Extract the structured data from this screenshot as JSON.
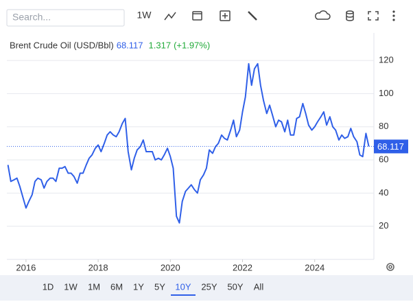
{
  "toolbar": {
    "search_placeholder": "Search...",
    "interval": "1W"
  },
  "chart_data": {
    "type": "line",
    "series": [
      {
        "name": "Brent Crude Oil (USD/Bbl)",
        "color": "#2f5fe8",
        "values": [
          57,
          47,
          48,
          49,
          44,
          37,
          31,
          35,
          39,
          47,
          49,
          48,
          43,
          47,
          49,
          49,
          47,
          55,
          55,
          56,
          52,
          52,
          50,
          46,
          52,
          52,
          57,
          61,
          63,
          67,
          69,
          65,
          70,
          75,
          77,
          75,
          74,
          77,
          82,
          85,
          65,
          54,
          61,
          66,
          68,
          72,
          65,
          65,
          65,
          60,
          61,
          60,
          63,
          67,
          62,
          55,
          26,
          22,
          35,
          41,
          43,
          45,
          42,
          40,
          48,
          51,
          55,
          66,
          64,
          68,
          70,
          75,
          73,
          72,
          78,
          84,
          74,
          78,
          89,
          98,
          118,
          105,
          115,
          118,
          105,
          96,
          88,
          93,
          87,
          80,
          84,
          83,
          77,
          84,
          75,
          75,
          85,
          86,
          94,
          88,
          81,
          78,
          80,
          83,
          86,
          89,
          81,
          86,
          80,
          78,
          72,
          75,
          73,
          74,
          79,
          74,
          71,
          63,
          62,
          76,
          68.117
        ]
      }
    ],
    "x": [
      2015.5,
      2015.58,
      2015.67,
      2015.75,
      2015.83,
      2015.92,
      2016,
      2016.08,
      2016.17,
      2016.25,
      2016.33,
      2016.42,
      2016.5,
      2016.58,
      2016.67,
      2016.75,
      2016.83,
      2016.92,
      2017,
      2017.08,
      2017.17,
      2017.25,
      2017.33,
      2017.42,
      2017.5,
      2017.58,
      2017.67,
      2017.75,
      2017.83,
      2017.92,
      2018,
      2018.08,
      2018.17,
      2018.25,
      2018.33,
      2018.42,
      2018.5,
      2018.58,
      2018.67,
      2018.75,
      2018.83,
      2018.92,
      2019,
      2019.08,
      2019.17,
      2019.25,
      2019.33,
      2019.42,
      2019.5,
      2019.58,
      2019.67,
      2019.75,
      2019.83,
      2019.92,
      2020,
      2020.08,
      2020.17,
      2020.25,
      2020.33,
      2020.42,
      2020.5,
      2020.58,
      2020.67,
      2020.75,
      2020.83,
      2020.92,
      2021,
      2021.08,
      2021.17,
      2021.25,
      2021.33,
      2021.42,
      2021.5,
      2021.58,
      2021.67,
      2021.75,
      2021.83,
      2021.92,
      2022,
      2022.08,
      2022.17,
      2022.25,
      2022.33,
      2022.42,
      2022.5,
      2022.58,
      2022.67,
      2022.75,
      2022.83,
      2022.92,
      2023,
      2023.08,
      2023.17,
      2023.25,
      2023.33,
      2023.42,
      2023.5,
      2023.58,
      2023.67,
      2023.75,
      2023.83,
      2023.92,
      2024,
      2024.08,
      2024.17,
      2024.25,
      2024.33,
      2024.42,
      2024.5,
      2024.58,
      2024.67,
      2024.75,
      2024.83,
      2024.92,
      2025,
      2025.08,
      2025.17,
      2025.25,
      2025.33,
      2025.42,
      2025.5
    ],
    "last_value": 68.117,
    "change": "1.317",
    "change_pct": "(+1.97%)",
    "xlim": [
      2015.47,
      2025.64
    ],
    "xticks": [
      2016,
      2018,
      2020,
      2022,
      2024
    ],
    "ylim": [
      0,
      125
    ],
    "yticks": [
      20,
      40,
      60,
      80,
      100,
      120
    ],
    "grid": true
  },
  "range_buttons": [
    "1D",
    "1W",
    "1M",
    "6M",
    "1Y",
    "5Y",
    "10Y",
    "25Y",
    "50Y",
    "All"
  ],
  "selected_range": "10Y"
}
